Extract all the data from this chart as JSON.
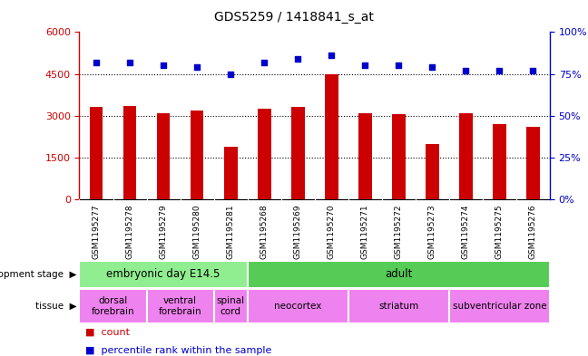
{
  "title": "GDS5259 / 1418841_s_at",
  "samples": [
    "GSM1195277",
    "GSM1195278",
    "GSM1195279",
    "GSM1195280",
    "GSM1195281",
    "GSM1195268",
    "GSM1195269",
    "GSM1195270",
    "GSM1195271",
    "GSM1195272",
    "GSM1195273",
    "GSM1195274",
    "GSM1195275",
    "GSM1195276"
  ],
  "counts": [
    3300,
    3350,
    3100,
    3200,
    1900,
    3250,
    3300,
    4500,
    3100,
    3050,
    2000,
    3100,
    2700,
    2600
  ],
  "percentiles": [
    82,
    82,
    80,
    79,
    75,
    82,
    84,
    86,
    80,
    80,
    79,
    77,
    77,
    77
  ],
  "bar_color": "#cc0000",
  "dot_color": "#0000cc",
  "ylim_left": [
    0,
    6000
  ],
  "ylim_right": [
    0,
    100
  ],
  "yticks_left": [
    0,
    1500,
    3000,
    4500,
    6000
  ],
  "yticks_right": [
    0,
    25,
    50,
    75,
    100
  ],
  "development_stage_groups": [
    {
      "label": "embryonic day E14.5",
      "start": 0,
      "end": 5,
      "color": "#90ee90"
    },
    {
      "label": "adult",
      "start": 5,
      "end": 14,
      "color": "#55cc55"
    }
  ],
  "tissue_groups": [
    {
      "label": "dorsal\nforebrain",
      "start": 0,
      "end": 2,
      "color": "#ee82ee"
    },
    {
      "label": "ventral\nforebrain",
      "start": 2,
      "end": 4,
      "color": "#ee82ee"
    },
    {
      "label": "spinal\ncord",
      "start": 4,
      "end": 5,
      "color": "#ee82ee"
    },
    {
      "label": "neocortex",
      "start": 5,
      "end": 8,
      "color": "#ee82ee"
    },
    {
      "label": "striatum",
      "start": 8,
      "end": 11,
      "color": "#ee82ee"
    },
    {
      "label": "subventricular zone",
      "start": 11,
      "end": 14,
      "color": "#ee82ee"
    }
  ],
  "axis_label_color_left": "#cc0000",
  "axis_label_color_right": "#0000cc",
  "bg_color": "#c8c8c8",
  "plot_bg_color": "#ffffff",
  "legend_count_color": "#cc0000",
  "legend_pct_color": "#0000cc",
  "fig_width": 6.48,
  "fig_height": 3.93,
  "fig_dpi": 100
}
